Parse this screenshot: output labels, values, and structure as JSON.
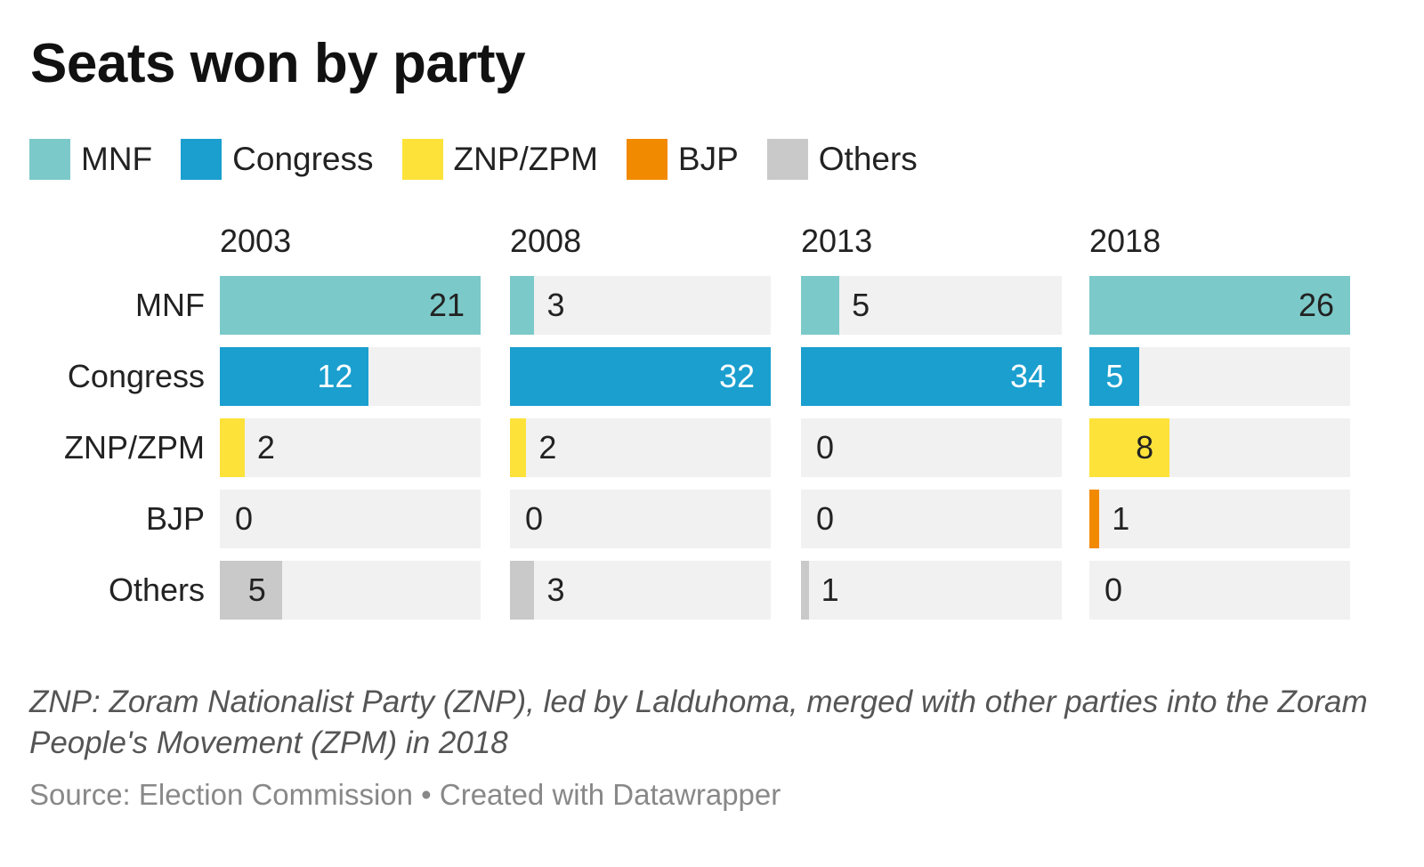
{
  "chart_data": {
    "type": "bar",
    "title": "Seats won by party",
    "legend": [
      {
        "label": "MNF",
        "color": "#7cc9c9"
      },
      {
        "label": "Congress",
        "color": "#1a9fcf"
      },
      {
        "label": "ZNP/ZPM",
        "color": "#fde23a"
      },
      {
        "label": "BJP",
        "color": "#f28a00"
      },
      {
        "label": "Others",
        "color": "#c9c9c9"
      }
    ],
    "categories": [
      "MNF",
      "Congress",
      "ZNP/ZPM",
      "BJP",
      "Others"
    ],
    "panels": [
      {
        "year": "2003",
        "values": [
          21,
          12,
          2,
          0,
          5
        ]
      },
      {
        "year": "2008",
        "values": [
          3,
          32,
          2,
          0,
          3
        ]
      },
      {
        "year": "2013",
        "values": [
          5,
          34,
          0,
          0,
          1
        ]
      },
      {
        "year": "2018",
        "values": [
          26,
          5,
          8,
          1,
          0
        ]
      }
    ],
    "note": "ZNP: Zoram Nationalist Party (ZNP), led by Lalduhoma, merged with other parties into the Zoram People's Movement (ZPM) in 2018",
    "source": "Source: Election Commission • Created with Datawrapper"
  }
}
